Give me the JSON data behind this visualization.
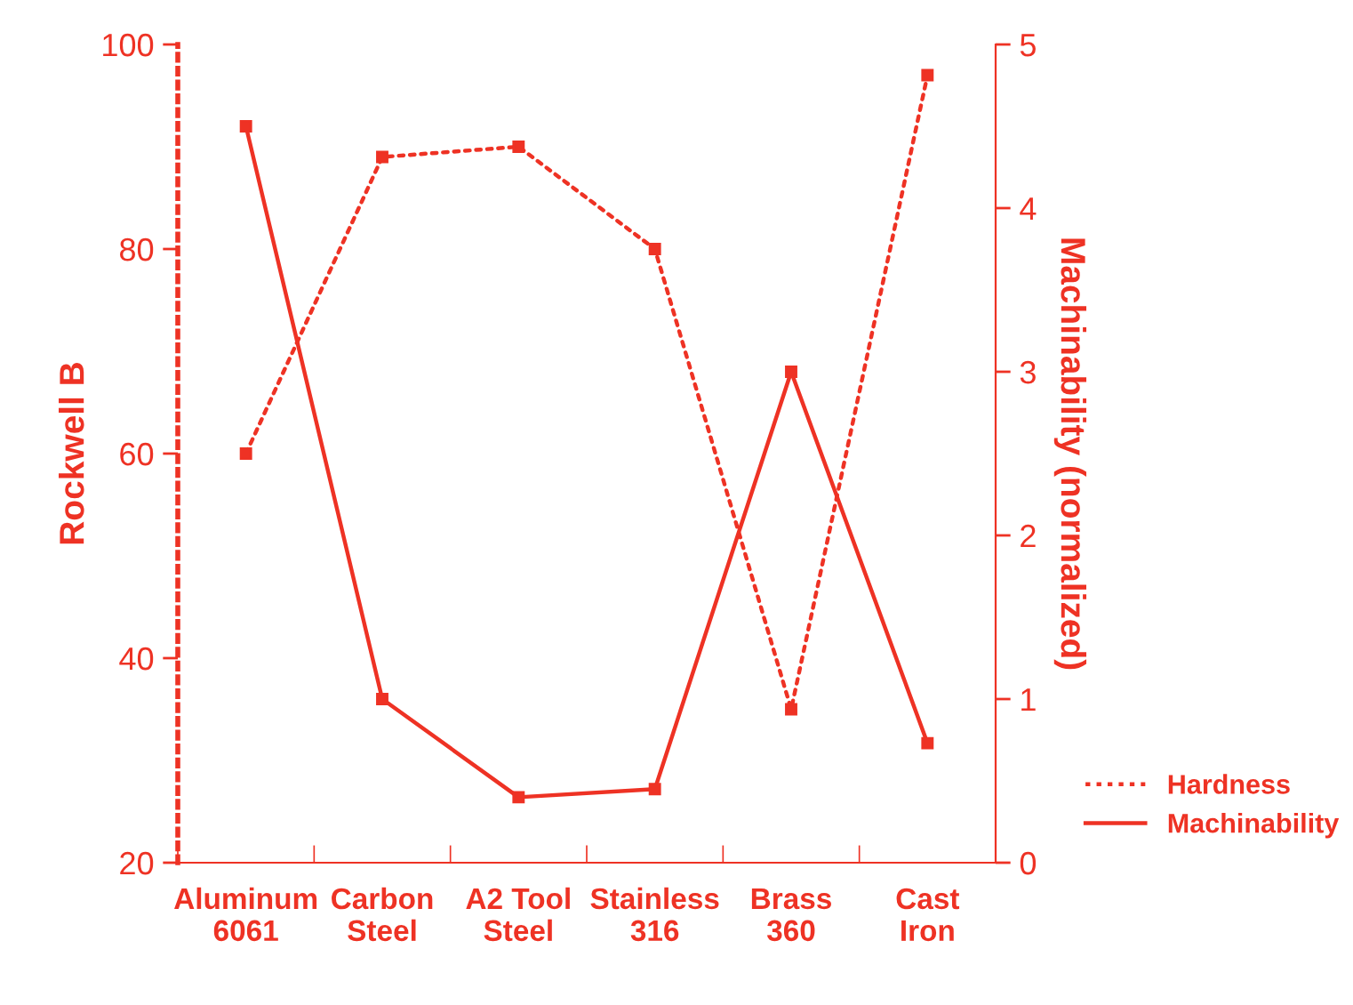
{
  "chart_data": {
    "type": "line",
    "categories": [
      "Aluminum\n6061",
      "Carbon\nSteel",
      "A2 Tool\nSteel",
      "Stainless\n316",
      "Brass\n360",
      "Cast\nIron"
    ],
    "ylabel": "Rockwell B",
    "y2label": "Machinability (normalized)",
    "ylim": [
      20,
      100
    ],
    "yticks": [
      20,
      40,
      60,
      80,
      100
    ],
    "y2lim": [
      0,
      5
    ],
    "y2ticks": [
      0,
      1,
      2,
      3,
      4,
      5
    ],
    "marker": "square",
    "grid": false,
    "legend": "bottom right",
    "series": [
      {
        "name": "Hardness",
        "color": "#ee3224",
        "line_style": "dotted",
        "values": [
          60,
          89,
          90,
          80,
          35,
          97
        ]
      },
      {
        "name": "Machinability",
        "color": "#ee3224",
        "line_style": "solid",
        "axis": "y2",
        "values": [
          4.5,
          1.0,
          0.4,
          0.45,
          3.0,
          0.73
        ]
      }
    ]
  }
}
